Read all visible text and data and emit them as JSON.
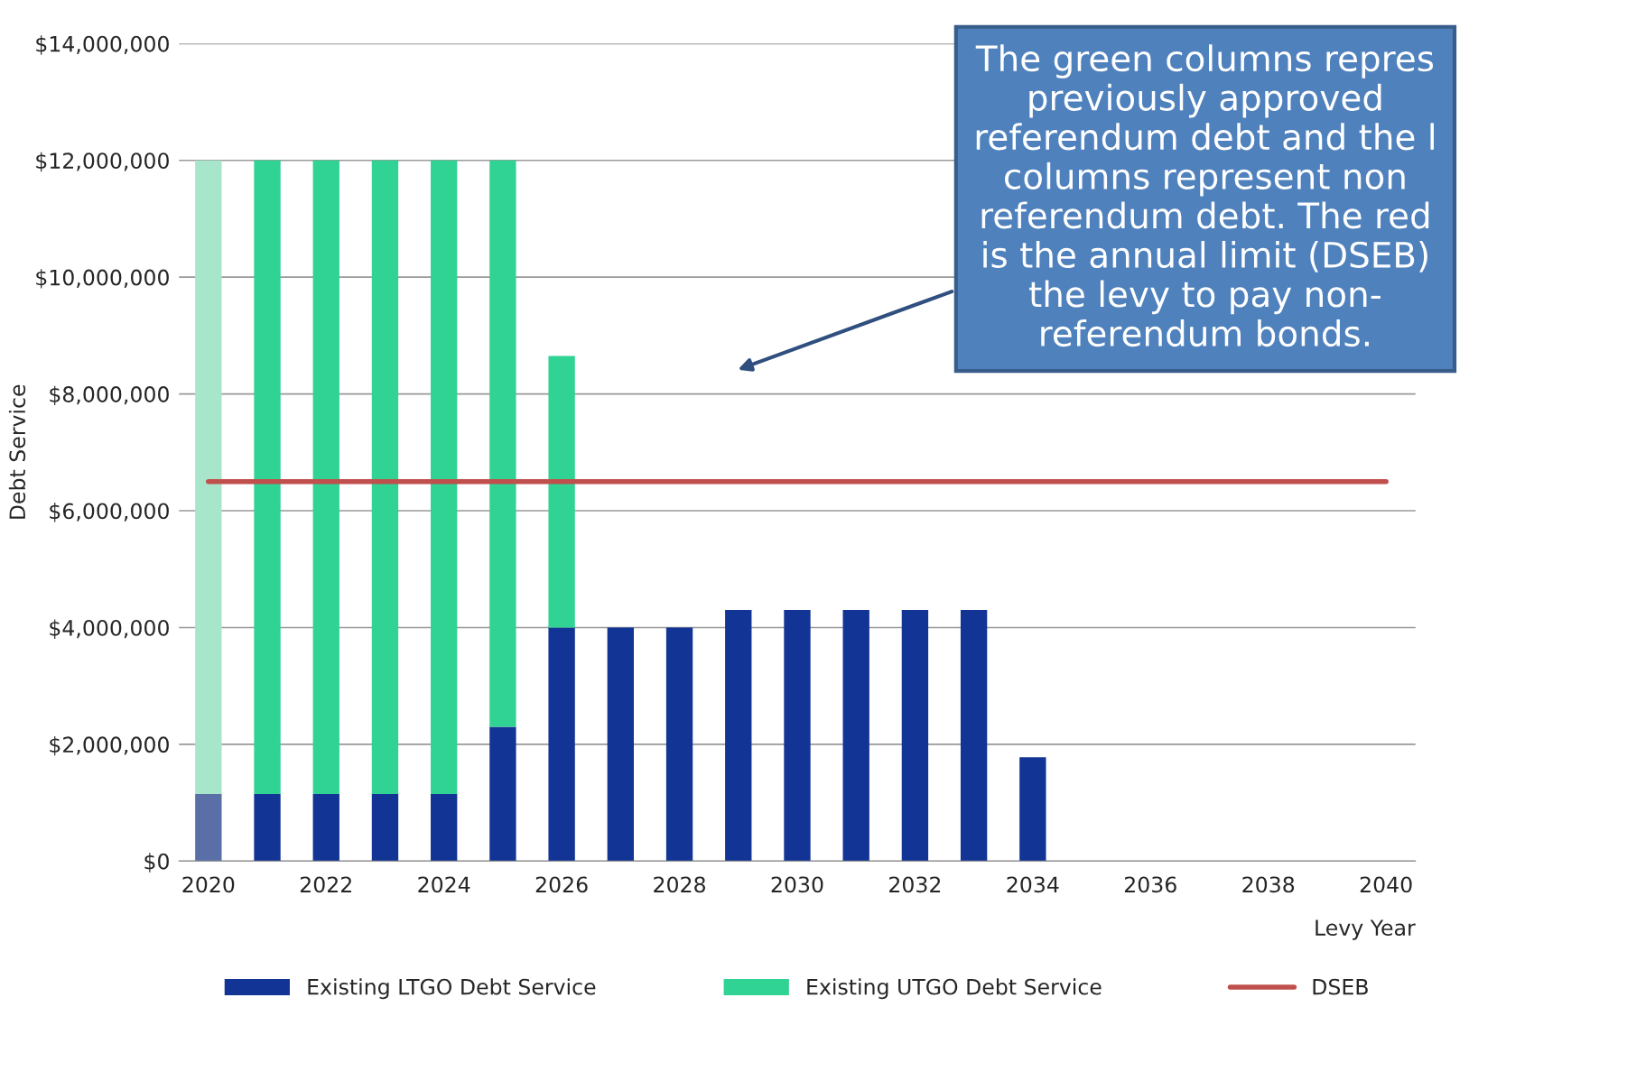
{
  "chart_data": {
    "type": "bar",
    "stacked": true,
    "xlabel": "Levy Year",
    "ylabel": "Debt Service",
    "categories": [
      "2020",
      null,
      "2022",
      null,
      "2024",
      null,
      "2026",
      null,
      "2028",
      null,
      "2030",
      null,
      "2032",
      null,
      "2034",
      null,
      "2036",
      null,
      "2038",
      null,
      "2040"
    ],
    "series": [
      {
        "name": "Existing LTGO Debt Service",
        "color": "#123494",
        "colors": [
          "#5a6fa8",
          "#123494",
          "#123494",
          "#123494",
          "#123494",
          "#123494",
          "#123494",
          "#123494",
          "#123494",
          "#123494",
          "#123494",
          "#123494",
          "#123494",
          "#123494",
          "#123494",
          "#123494",
          "#123494",
          "#123494",
          "#123494",
          "#123494",
          "#123494"
        ],
        "values": [
          1150000.0,
          1150000.0,
          1150000.0,
          1150000.0,
          1150000.0,
          2300000.0,
          4000000.0,
          4000000.0,
          4000000.0,
          4300000.0,
          4300000.0,
          4300000.0,
          4300000.0,
          4300000.0,
          1780000.0,
          null,
          null,
          null,
          null,
          null,
          null
        ]
      },
      {
        "name": "Existing UTGO Debt Service",
        "color": "#31d394",
        "colors": [
          "#a8e6cc",
          "#31d394",
          "#31d394",
          "#31d394",
          "#31d394",
          "#31d394",
          "#31d394",
          "#31d394",
          "#31d394",
          "#31d394",
          "#31d394",
          "#31d394",
          "#31d394",
          "#31d394",
          "#31d394",
          "#31d394",
          "#31d394",
          "#31d394",
          "#31d394",
          "#31d394",
          "#31d394"
        ],
        "values": [
          10850000.0,
          10850000.0,
          10850000.0,
          10850000.0,
          10850000.0,
          9700000.0,
          4650000.0,
          null,
          null,
          null,
          null,
          null,
          null,
          null,
          null,
          null,
          null,
          null,
          null,
          null,
          null
        ]
      },
      {
        "name": "DSEB",
        "type": "line",
        "color": "#c0504d",
        "values": [
          6500000.0,
          6500000.0,
          6500000.0,
          6500000.0,
          6500000.0,
          6500000.0,
          6500000.0,
          6500000.0,
          6500000.0,
          6500000.0,
          6500000.0,
          6500000.0,
          6500000.0,
          6500000.0,
          6500000.0,
          6500000.0,
          6500000.0,
          6500000.0,
          6500000.0,
          6500000.0,
          6500000.0
        ]
      }
    ],
    "ylim": [
      0,
      14000000
    ],
    "yticks": [
      {
        "value": 0,
        "label": "$0"
      },
      {
        "value": 2000000,
        "label": "$2,000,000"
      },
      {
        "value": 4000000,
        "label": "$4,000,000"
      },
      {
        "value": 6000000,
        "label": "$6,000,000"
      },
      {
        "value": 8000000,
        "label": "$8,000,000"
      },
      {
        "value": 10000000,
        "label": "$10,000,000"
      },
      {
        "value": 12000000,
        "label": "$12,000,000"
      },
      {
        "value": 14000000,
        "label": "$14,000,000"
      }
    ],
    "grid": "y",
    "legend": "bottom",
    "annotations": [
      "The green columns repres\npreviously approved\nreferendum debt and the l\ncolumns represent non\nreferendum debt. The red\nis the annual limit (DSEB)\nthe levy to pay non-\nreferendum bonds."
    ]
  }
}
